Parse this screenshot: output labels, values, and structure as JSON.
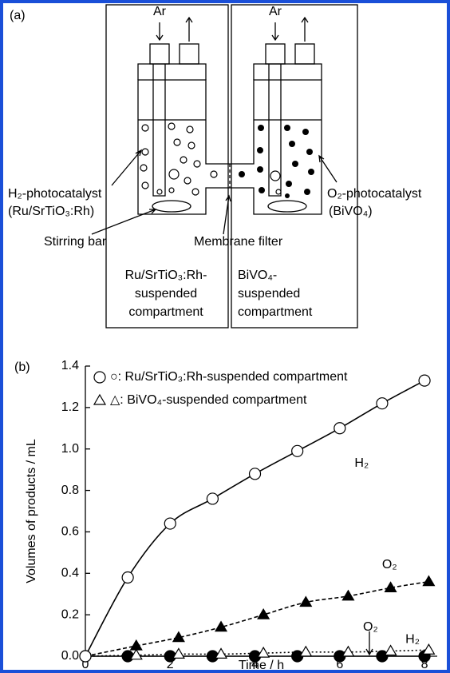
{
  "diagram": {
    "panel_label": "(a)",
    "gas_in_left": "Ar",
    "gas_in_right": "Ar",
    "h2_catalyst": "H₂-photocatalyst",
    "h2_catalyst_name": "(Ru/SrTiO₃:Rh)",
    "o2_catalyst": "O₂-photocatalyst",
    "o2_catalyst_name": "(BiVO₄)",
    "stirring_bar": "Stirring bar",
    "membrane": "Membrane filter",
    "left_compartment": [
      "Ru/SrTiO₃:Rh-",
      "suspended",
      "compartment"
    ],
    "right_compartment": [
      "BiVO₄-",
      "suspended",
      "compartment"
    ]
  },
  "chart_data": {
    "type": "line",
    "panel_label": "(b)",
    "x_label": "Time / h",
    "y_label": "Volumes of products / mL",
    "xlim": [
      0,
      8.3
    ],
    "ylim": [
      0,
      1.4
    ],
    "xticks": [
      0,
      2,
      4,
      6,
      8
    ],
    "yticks": [
      {
        "value": 0,
        "label": "0.0"
      },
      0.2,
      0.4,
      0.6,
      0.8,
      {
        "value": 1,
        "label": "1.0"
      },
      1.2,
      1.4
    ],
    "legend": [
      {
        "marker": "circle",
        "label": "○: Ru/SrTiO₃:Rh-suspended compartment"
      },
      {
        "marker": "triangle",
        "label": "△: BiVO₄-suspended compartment"
      }
    ],
    "series": [
      {
        "name": "H₂",
        "marker": "circle",
        "filled": false,
        "dash": "solid",
        "color": "#000",
        "x": [
          0,
          1,
          2,
          3,
          4,
          5,
          6,
          7,
          8
        ],
        "values": [
          0,
          0.38,
          0.64,
          0.76,
          0.88,
          0.99,
          1.1,
          1.22,
          1.33
        ]
      },
      {
        "name": "O₂",
        "marker": "triangle",
        "filled": true,
        "dash": "dashed",
        "color": "#000",
        "x": [
          1.2,
          2.2,
          3.2,
          4.2,
          5.2,
          6.2,
          7.2,
          8.1
        ],
        "values": [
          0.05,
          0.09,
          0.14,
          0.2,
          0.26,
          0.29,
          0.33,
          0.36
        ]
      },
      {
        "name": "O₂",
        "marker": "circle",
        "filled": true,
        "dash": "solid",
        "color": "#000",
        "x": [
          1,
          2,
          3,
          4,
          5,
          6,
          7,
          8
        ],
        "values": [
          0,
          0,
          0,
          0,
          0,
          0,
          0,
          0
        ]
      },
      {
        "name": "H₂",
        "marker": "triangle",
        "filled": false,
        "dash": "dotted",
        "color": "#000",
        "x": [
          1.2,
          2.2,
          3.2,
          4.2,
          5.2,
          6.2,
          7.2,
          8.1
        ],
        "values": [
          0.005,
          0.01,
          0.01,
          0.015,
          0.02,
          0.02,
          0.025,
          0.03
        ]
      }
    ]
  }
}
